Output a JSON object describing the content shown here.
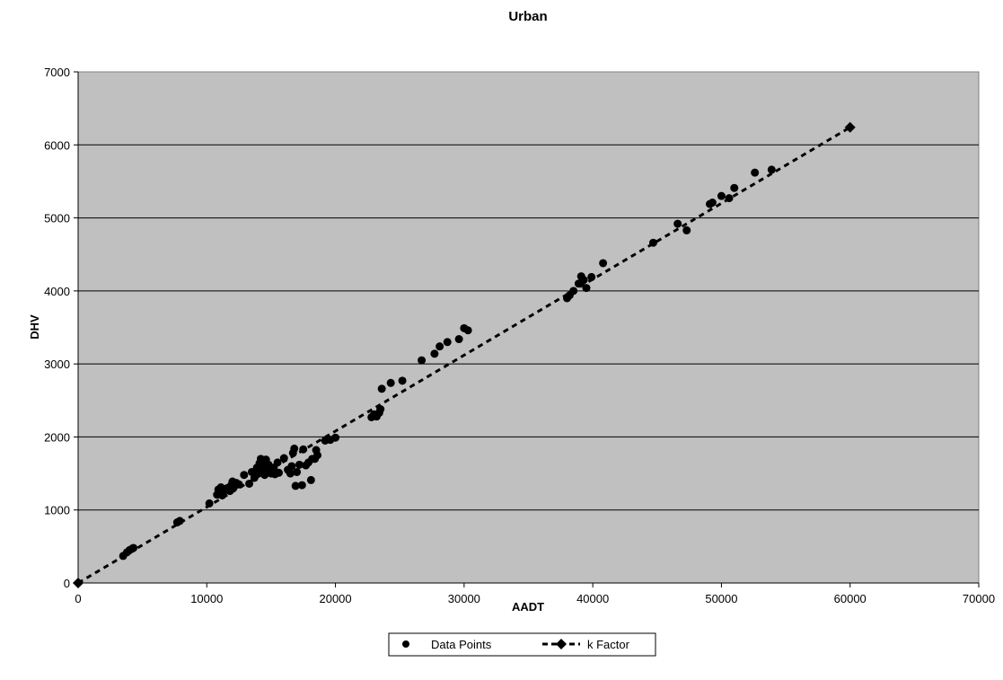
{
  "chart_data": {
    "type": "scatter",
    "title": "Urban",
    "xlabel": "AADT",
    "ylabel": "DHV",
    "xlim": [
      0,
      70000
    ],
    "ylim": [
      0,
      7000
    ],
    "xticks": [
      "0",
      "10000",
      "20000",
      "30000",
      "40000",
      "50000",
      "60000",
      "70000"
    ],
    "yticks": [
      "0",
      "1000",
      "2000",
      "3000",
      "4000",
      "5000",
      "6000",
      "7000"
    ],
    "grid": "horizontal",
    "plot_background": "#c0c0c0",
    "legend_position": "bottom",
    "series": [
      {
        "name": "Data Points",
        "marker": "circle",
        "line": "none",
        "color": "#000000",
        "points": [
          [
            3500,
            370
          ],
          [
            3800,
            420
          ],
          [
            4000,
            450
          ],
          [
            4200,
            470
          ],
          [
            4300,
            480
          ],
          [
            7700,
            830
          ],
          [
            7900,
            850
          ],
          [
            10200,
            1090
          ],
          [
            10800,
            1210
          ],
          [
            10900,
            1280
          ],
          [
            11000,
            1250
          ],
          [
            11100,
            1310
          ],
          [
            11200,
            1200
          ],
          [
            11400,
            1270
          ],
          [
            11600,
            1300
          ],
          [
            11800,
            1260
          ],
          [
            11900,
            1340
          ],
          [
            12000,
            1390
          ],
          [
            12100,
            1310
          ],
          [
            12300,
            1370
          ],
          [
            12500,
            1350
          ],
          [
            12900,
            1480
          ],
          [
            13300,
            1360
          ],
          [
            13500,
            1520
          ],
          [
            13700,
            1440
          ],
          [
            13900,
            1580
          ],
          [
            14000,
            1500
          ],
          [
            14100,
            1640
          ],
          [
            14200,
            1700
          ],
          [
            14300,
            1520
          ],
          [
            14400,
            1600
          ],
          [
            14500,
            1480
          ],
          [
            14600,
            1690
          ],
          [
            14700,
            1560
          ],
          [
            14800,
            1620
          ],
          [
            15000,
            1500
          ],
          [
            15200,
            1580
          ],
          [
            15300,
            1490
          ],
          [
            15500,
            1650
          ],
          [
            15600,
            1510
          ],
          [
            16000,
            1710
          ],
          [
            16300,
            1550
          ],
          [
            16500,
            1500
          ],
          [
            16600,
            1600
          ],
          [
            16700,
            1780
          ],
          [
            16800,
            1840
          ],
          [
            16900,
            1330
          ],
          [
            17000,
            1520
          ],
          [
            17200,
            1620
          ],
          [
            17400,
            1340
          ],
          [
            17500,
            1830
          ],
          [
            17700,
            1610
          ],
          [
            17900,
            1650
          ],
          [
            18100,
            1410
          ],
          [
            18200,
            1700
          ],
          [
            18400,
            1700
          ],
          [
            18500,
            1820
          ],
          [
            18600,
            1750
          ],
          [
            19200,
            1950
          ],
          [
            19600,
            1960
          ],
          [
            20000,
            1990
          ],
          [
            22800,
            2270
          ],
          [
            23000,
            2310
          ],
          [
            23200,
            2280
          ],
          [
            23400,
            2330
          ],
          [
            23500,
            2380
          ],
          [
            23600,
            2660
          ],
          [
            24300,
            2740
          ],
          [
            25200,
            2770
          ],
          [
            26700,
            3050
          ],
          [
            27700,
            3140
          ],
          [
            28100,
            3240
          ],
          [
            28700,
            3300
          ],
          [
            29600,
            3340
          ],
          [
            30000,
            3490
          ],
          [
            30300,
            3460
          ],
          [
            38000,
            3900
          ],
          [
            38200,
            3940
          ],
          [
            38500,
            4000
          ],
          [
            38900,
            4100
          ],
          [
            39100,
            4200
          ],
          [
            39300,
            4150
          ],
          [
            39500,
            4040
          ],
          [
            39900,
            4190
          ],
          [
            40800,
            4380
          ],
          [
            44700,
            4660
          ],
          [
            46600,
            4920
          ],
          [
            47300,
            4830
          ],
          [
            49100,
            5190
          ],
          [
            49300,
            5210
          ],
          [
            50000,
            5300
          ],
          [
            50600,
            5270
          ],
          [
            51000,
            5410
          ],
          [
            52600,
            5620
          ],
          [
            53900,
            5660
          ]
        ]
      },
      {
        "name": "k Factor",
        "marker": "diamond",
        "line": "dashed",
        "color": "#000000",
        "points": [
          [
            0,
            0
          ],
          [
            60000,
            6240
          ]
        ]
      }
    ]
  }
}
